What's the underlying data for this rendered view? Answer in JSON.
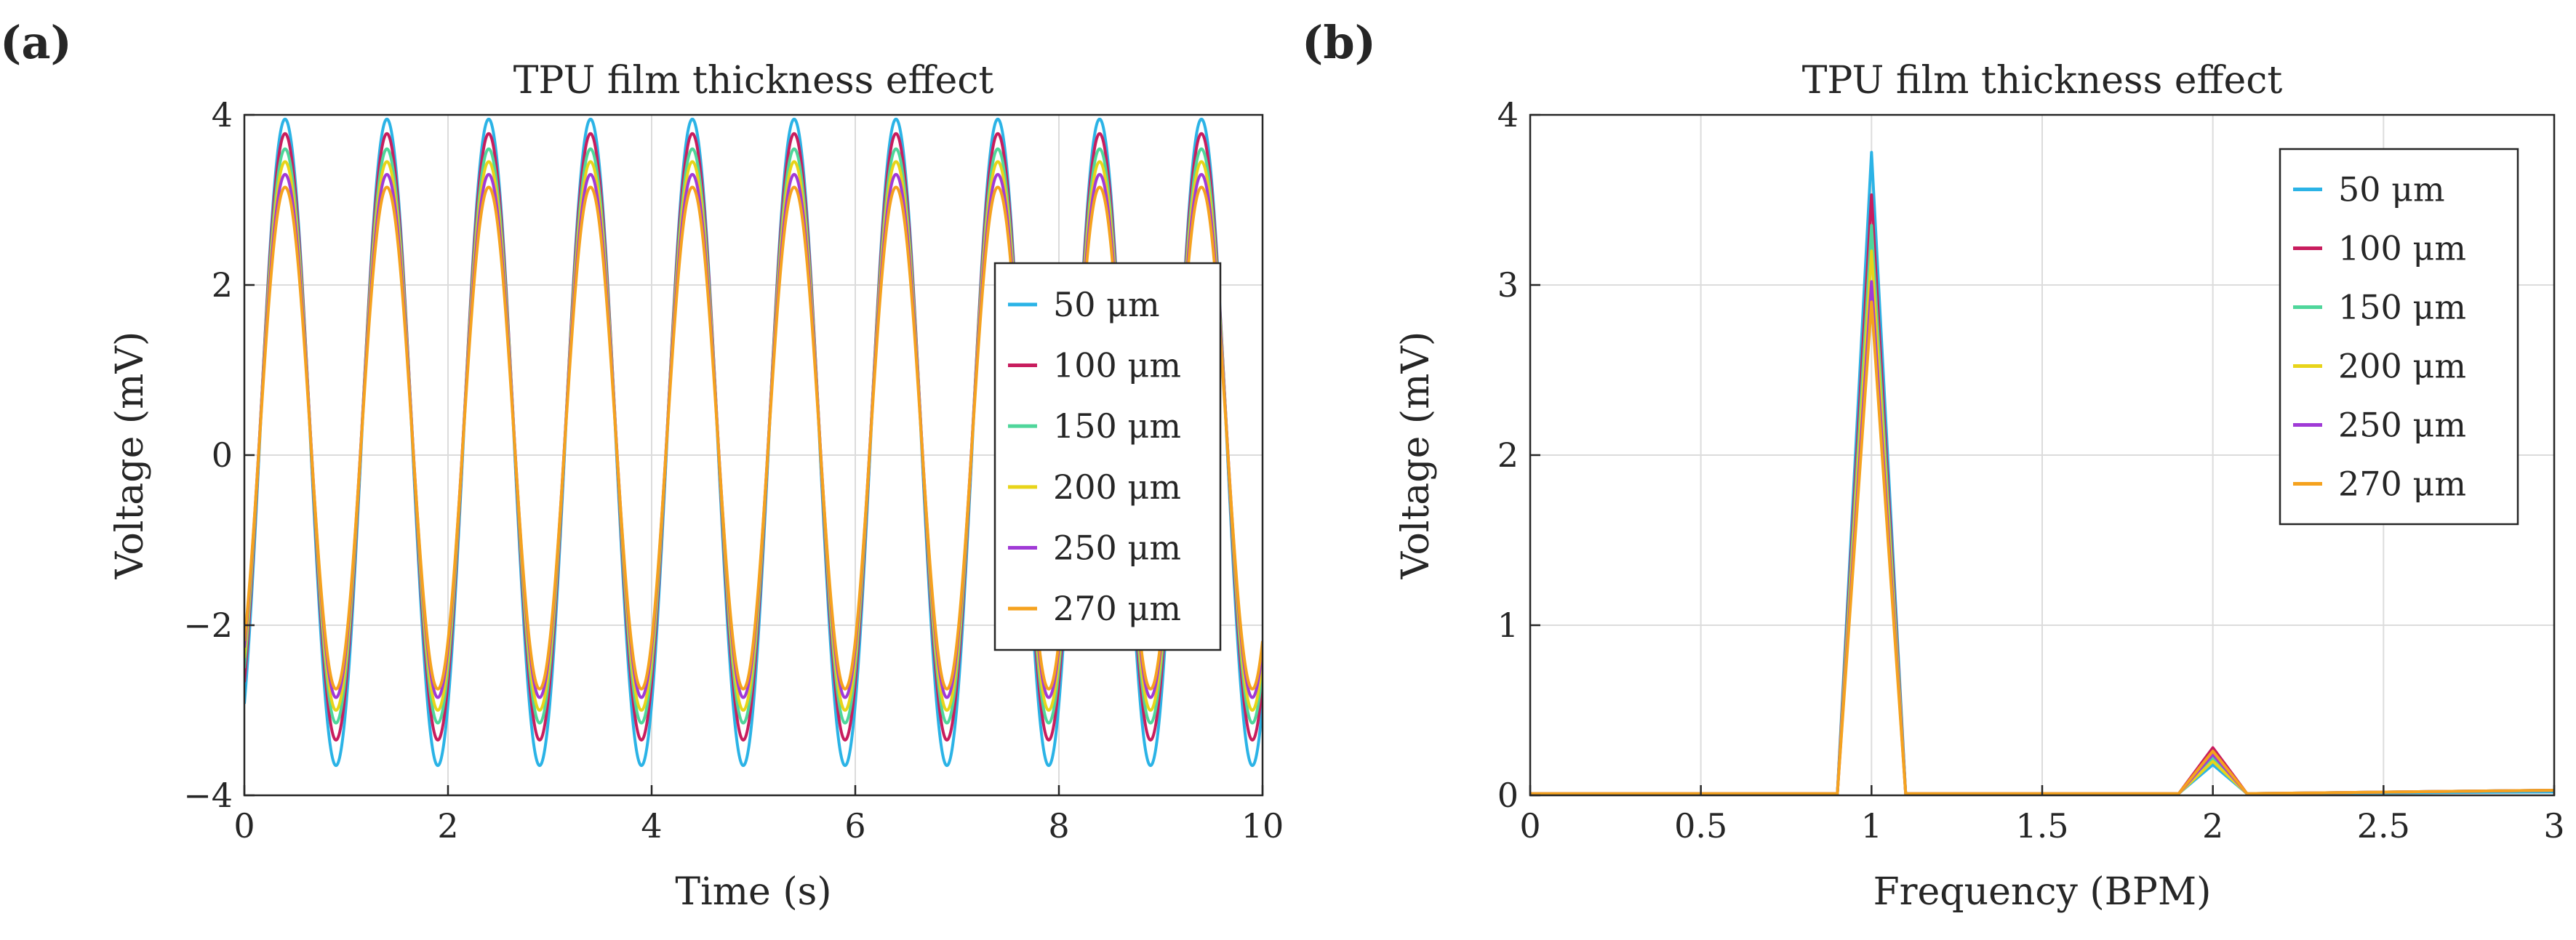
{
  "chart_data": [
    {
      "panel": "(a)",
      "type": "line",
      "title": "TPU film thickness effect",
      "xlabel": "Time (s)",
      "ylabel": "Voltage (mV)",
      "xlim": [
        0,
        10
      ],
      "ylim": [
        -4,
        4
      ],
      "xticks": [
        0,
        2,
        4,
        6,
        8,
        10
      ],
      "xtick_labels": [
        "0",
        "2",
        "4",
        "6",
        "8",
        "10"
      ],
      "yticks": [
        -4,
        -2,
        0,
        2,
        4
      ],
      "ytick_labels": [
        "−4",
        "−2",
        "0",
        "2",
        "4"
      ],
      "grid": true,
      "legend_position": "right-center",
      "frequency_hz": 1,
      "peak_time_s": 0.4,
      "series": [
        {
          "name": "50 μm",
          "color": "#2bb3e6",
          "max": 3.95,
          "min": -3.65
        },
        {
          "name": "100 μm",
          "color": "#c81d5e",
          "max": 3.78,
          "min": -3.35
        },
        {
          "name": "150 μm",
          "color": "#4fd69b",
          "max": 3.6,
          "min": -3.15
        },
        {
          "name": "200 μm",
          "color": "#e8d41a",
          "max": 3.45,
          "min": -3.0
        },
        {
          "name": "250 μm",
          "color": "#a03ad6",
          "max": 3.3,
          "min": -2.85
        },
        {
          "name": "270 μm",
          "color": "#f5a21e",
          "max": 3.15,
          "min": -2.75
        }
      ]
    },
    {
      "panel": "(b)",
      "type": "line",
      "title": "TPU film thickness effect",
      "xlabel": "Frequency (BPM)",
      "ylabel": "Voltage (mV)",
      "xlim": [
        0,
        3
      ],
      "ylim": [
        0,
        4
      ],
      "xticks": [
        0,
        0.5,
        1,
        1.5,
        2,
        2.5,
        3
      ],
      "xtick_labels": [
        "0",
        "0.5",
        "1",
        "1.5",
        "2",
        "2.5",
        "3"
      ],
      "yticks": [
        0,
        1,
        2,
        3,
        4
      ],
      "ytick_labels": [
        "0",
        "1",
        "2",
        "3",
        "4"
      ],
      "grid": true,
      "legend_position": "top-right",
      "series": [
        {
          "name": "50 μm",
          "color": "#2bb3e6",
          "x": [
            0,
            0.9,
            1.0,
            1.1,
            1.9,
            2.0,
            2.1,
            3.0
          ],
          "y": [
            0.01,
            0.01,
            3.78,
            0.01,
            0.01,
            0.18,
            0.01,
            0.02
          ]
        },
        {
          "name": "100 μm",
          "color": "#c81d5e",
          "x": [
            0,
            0.9,
            1.0,
            1.1,
            1.9,
            2.0,
            2.1,
            3.0
          ],
          "y": [
            0.01,
            0.01,
            3.53,
            0.01,
            0.01,
            0.28,
            0.01,
            0.03
          ]
        },
        {
          "name": "150 μm",
          "color": "#4fd69b",
          "x": [
            0,
            0.9,
            1.0,
            1.1,
            1.9,
            2.0,
            2.1,
            3.0
          ],
          "y": [
            0.01,
            0.01,
            3.35,
            0.01,
            0.01,
            0.22,
            0.01,
            0.03
          ]
        },
        {
          "name": "200 μm",
          "color": "#e8d41a",
          "x": [
            0,
            0.9,
            1.0,
            1.1,
            1.9,
            2.0,
            2.1,
            3.0
          ],
          "y": [
            0.01,
            0.01,
            3.2,
            0.01,
            0.01,
            0.2,
            0.01,
            0.03
          ]
        },
        {
          "name": "250 μm",
          "color": "#a03ad6",
          "x": [
            0,
            0.9,
            1.0,
            1.1,
            1.9,
            2.0,
            2.1,
            3.0
          ],
          "y": [
            0.01,
            0.01,
            3.02,
            0.01,
            0.01,
            0.24,
            0.01,
            0.03
          ]
        },
        {
          "name": "270 μm",
          "color": "#f5a21e",
          "x": [
            0,
            0.9,
            1.0,
            1.1,
            1.9,
            2.0,
            2.1,
            3.0
          ],
          "y": [
            0.01,
            0.01,
            2.9,
            0.01,
            0.01,
            0.26,
            0.01,
            0.03
          ]
        }
      ]
    }
  ]
}
